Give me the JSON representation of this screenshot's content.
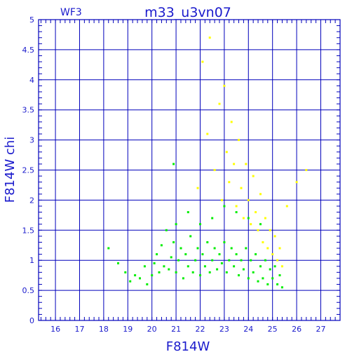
{
  "chart_data": {
    "type": "scatter",
    "title": "m33_u3vn07",
    "corner_label": "WF3",
    "xlabel": "F814W",
    "ylabel": "F814W  chi",
    "xlim": [
      15.3,
      27.8
    ],
    "ylim": [
      0,
      5
    ],
    "x_tick_labels": [
      "16",
      "17",
      "18",
      "19",
      "20",
      "21",
      "22",
      "23",
      "24",
      "25",
      "26",
      "27"
    ],
    "y_tick_labels": [
      "0",
      "0.5",
      "1",
      "1.5",
      "2",
      "2.5",
      "3",
      "3.5",
      "4",
      "4.5",
      "5"
    ],
    "grid": true,
    "colors": {
      "axis": "#0000bb",
      "text": "#1a1acc",
      "series_green": "#00ee00",
      "series_yellow": "#ffff00"
    },
    "series": [
      {
        "color_key": "series_green",
        "points": [
          [
            18.2,
            1.2
          ],
          [
            18.6,
            0.95
          ],
          [
            18.9,
            0.8
          ],
          [
            19.1,
            0.65
          ],
          [
            19.3,
            0.75
          ],
          [
            19.5,
            0.7
          ],
          [
            19.7,
            0.9
          ],
          [
            19.8,
            0.6
          ],
          [
            20.0,
            0.75
          ],
          [
            20.1,
            0.95
          ],
          [
            20.2,
            1.1
          ],
          [
            20.3,
            0.8
          ],
          [
            20.4,
            1.25
          ],
          [
            20.5,
            0.9
          ],
          [
            20.6,
            1.5
          ],
          [
            20.7,
            0.85
          ],
          [
            20.8,
            1.05
          ],
          [
            20.9,
            1.3
          ],
          [
            21.0,
            0.8
          ],
          [
            21.0,
            1.6
          ],
          [
            21.1,
            1.0
          ],
          [
            21.2,
            1.2
          ],
          [
            21.3,
            0.7
          ],
          [
            21.4,
            1.1
          ],
          [
            21.5,
            0.9
          ],
          [
            21.6,
            1.4
          ],
          [
            21.7,
            0.8
          ],
          [
            21.8,
            1.0
          ],
          [
            21.9,
            1.2
          ],
          [
            22.0,
            0.75
          ],
          [
            22.1,
            1.1
          ],
          [
            22.2,
            0.9
          ],
          [
            22.3,
            1.3
          ],
          [
            22.4,
            0.8
          ],
          [
            22.5,
            1.0
          ],
          [
            22.6,
            1.2
          ],
          [
            22.7,
            0.85
          ],
          [
            22.8,
            1.1
          ],
          [
            22.9,
            0.95
          ],
          [
            23.0,
            1.3
          ],
          [
            23.1,
            0.8
          ],
          [
            23.2,
            1.0
          ],
          [
            23.3,
            1.2
          ],
          [
            23.4,
            0.9
          ],
          [
            23.5,
            1.1
          ],
          [
            23.6,
            0.75
          ],
          [
            23.7,
            1.0
          ],
          [
            23.8,
            0.85
          ],
          [
            23.9,
            1.2
          ],
          [
            24.0,
            0.7
          ],
          [
            24.1,
            1.0
          ],
          [
            24.2,
            0.8
          ],
          [
            24.3,
            1.1
          ],
          [
            24.4,
            0.65
          ],
          [
            24.5,
            0.9
          ],
          [
            24.6,
            0.7
          ],
          [
            24.7,
            1.0
          ],
          [
            24.8,
            0.6
          ],
          [
            24.9,
            0.85
          ],
          [
            25.0,
            0.7
          ],
          [
            25.1,
            0.9
          ],
          [
            25.2,
            0.6
          ],
          [
            25.3,
            0.75
          ],
          [
            25.4,
            0.55
          ],
          [
            21.5,
            1.8
          ],
          [
            22.0,
            1.6
          ],
          [
            22.5,
            1.7
          ],
          [
            23.0,
            1.9
          ],
          [
            23.5,
            1.8
          ],
          [
            24.0,
            1.7
          ],
          [
            24.5,
            1.6
          ],
          [
            20.9,
            2.6
          ]
        ]
      },
      {
        "color_key": "series_yellow",
        "points": [
          [
            21.9,
            2.2
          ],
          [
            22.1,
            4.3
          ],
          [
            22.3,
            3.1
          ],
          [
            22.4,
            4.7
          ],
          [
            22.6,
            2.5
          ],
          [
            22.8,
            3.6
          ],
          [
            22.9,
            2.0
          ],
          [
            23.0,
            3.9
          ],
          [
            23.1,
            2.8
          ],
          [
            23.2,
            2.3
          ],
          [
            23.3,
            3.3
          ],
          [
            23.4,
            2.6
          ],
          [
            23.5,
            1.9
          ],
          [
            23.6,
            3.0
          ],
          [
            23.7,
            2.2
          ],
          [
            23.8,
            1.7
          ],
          [
            23.9,
            2.6
          ],
          [
            24.0,
            2.0
          ],
          [
            24.1,
            1.6
          ],
          [
            24.2,
            2.4
          ],
          [
            24.3,
            1.8
          ],
          [
            24.4,
            1.5
          ],
          [
            24.5,
            2.1
          ],
          [
            24.6,
            1.3
          ],
          [
            24.7,
            1.7
          ],
          [
            24.8,
            1.2
          ],
          [
            24.9,
            1.5
          ],
          [
            25.0,
            1.1
          ],
          [
            25.1,
            1.4
          ],
          [
            25.2,
            1.0
          ],
          [
            25.3,
            1.2
          ],
          [
            25.4,
            0.9
          ],
          [
            25.6,
            1.9
          ],
          [
            26.0,
            2.3
          ],
          [
            26.4,
            2.5
          ]
        ]
      }
    ]
  }
}
